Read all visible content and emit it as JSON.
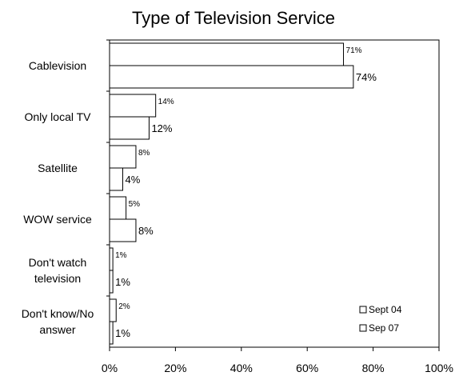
{
  "chart_data": {
    "type": "bar",
    "orientation": "horizontal",
    "title": "Type of Television Service",
    "categories": [
      [
        "Cablevision"
      ],
      [
        "Only local TV"
      ],
      [
        "Satellite"
      ],
      [
        "WOW service"
      ],
      [
        "Don't watch",
        "television"
      ],
      [
        "Don't know/No",
        "answer"
      ]
    ],
    "series": [
      {
        "name": "Sept 04",
        "values": [
          71,
          14,
          8,
          5,
          1,
          2
        ],
        "labels": [
          "71%",
          "14%",
          "8%",
          "5%",
          "1%",
          "2%"
        ]
      },
      {
        "name": "Sep 07",
        "values": [
          74,
          12,
          4,
          8,
          1,
          1
        ],
        "labels": [
          "74%",
          "12%",
          "4%",
          "8%",
          "1%",
          "1%"
        ]
      }
    ],
    "xlim": [
      0,
      100
    ],
    "xticks": [
      "0%",
      "20%",
      "40%",
      "60%",
      "80%",
      "100%"
    ],
    "colors": {
      "bar_fill": "#ffffff",
      "bar_stroke": "#000000"
    },
    "legend_position": "bottom-right",
    "grid": false
  }
}
